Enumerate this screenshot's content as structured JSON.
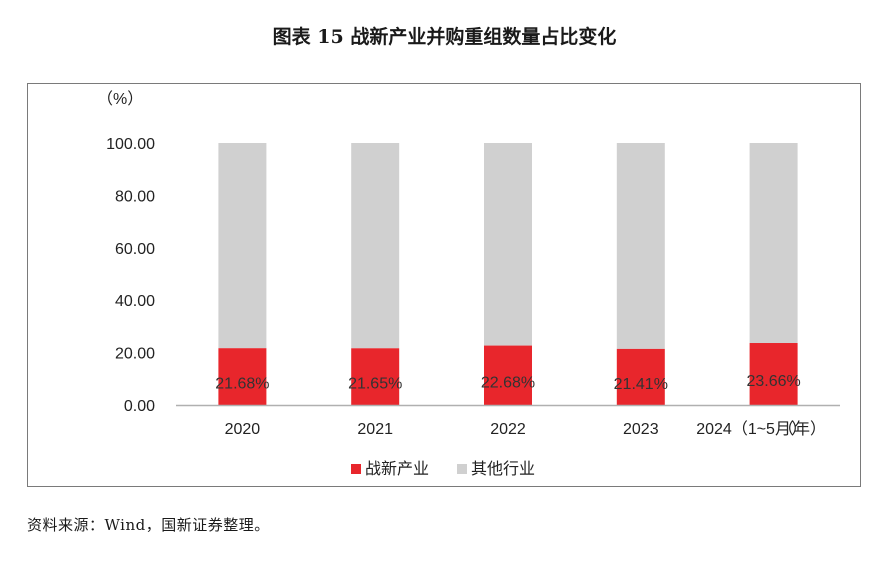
{
  "title": "图表 15  战新产业并购重组数量占比变化",
  "source": "资料来源：Wind，国新证券整理。",
  "colors": {
    "strategic": "#e8262c",
    "other": "#d0d0d0",
    "axis": "#b0b0b0",
    "text": "#222222"
  },
  "chart_data": {
    "type": "bar",
    "stacked": true,
    "y_unit": "（%）",
    "x_unit": "（年）",
    "ylim": [
      0,
      100
    ],
    "yticks": [
      "0.00",
      "20.00",
      "40.00",
      "60.00",
      "80.00",
      "100.00"
    ],
    "categories": [
      "2020",
      "2021",
      "2022",
      "2023",
      "2024（1~5月）"
    ],
    "series": [
      {
        "name": "战新产业",
        "values": [
          21.68,
          21.65,
          22.68,
          21.41,
          23.66
        ],
        "labels": [
          "21.68%",
          "21.65%",
          "22.68%",
          "21.41%",
          "23.66%"
        ]
      },
      {
        "name": "其他行业",
        "values": [
          78.32,
          78.35,
          77.32,
          78.59,
          76.34
        ]
      }
    ],
    "legend_position": "bottom",
    "grid": false
  }
}
